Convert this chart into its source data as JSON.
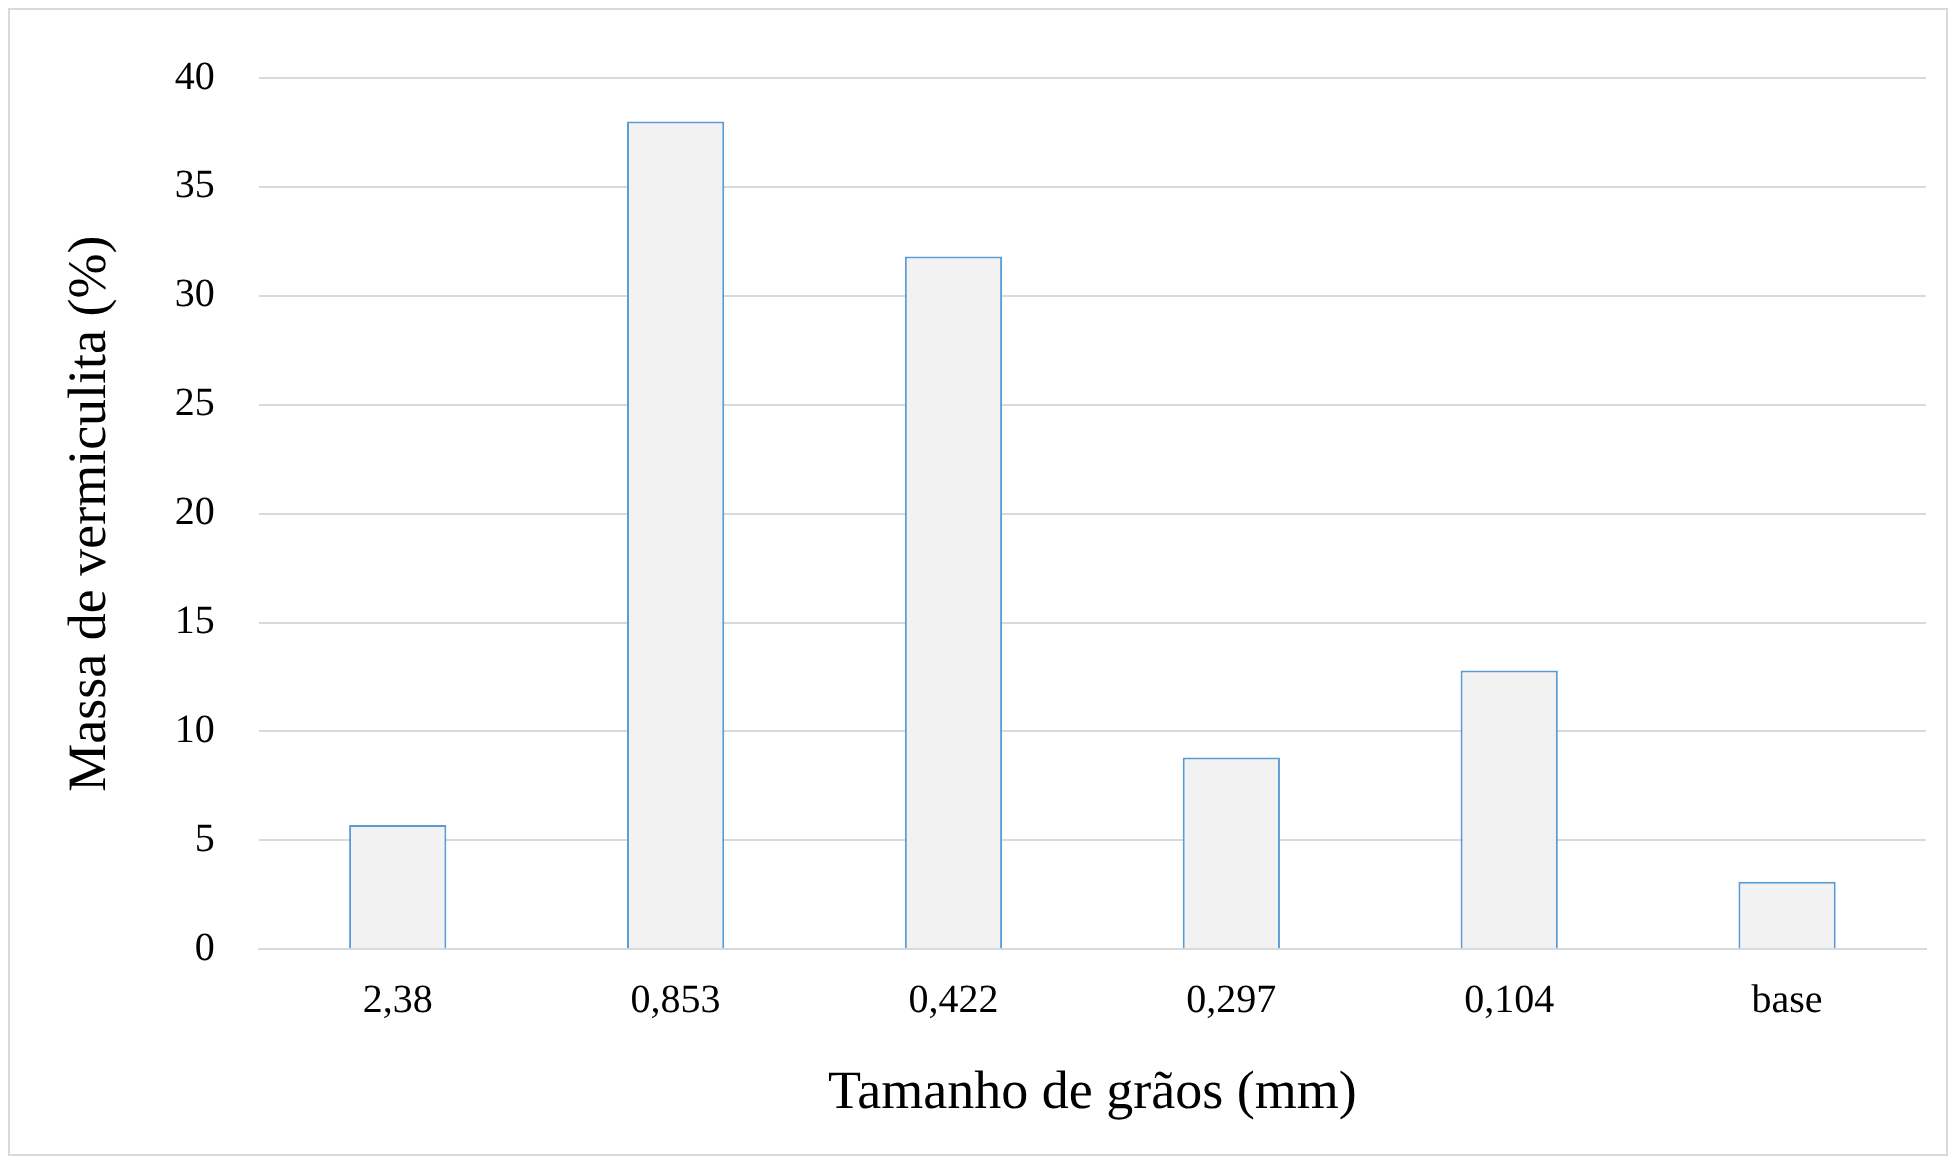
{
  "chart_data": {
    "type": "bar",
    "xlabel": "Tamanho de grãos (mm)",
    "ylabel": "Massa de vermiculita (%)",
    "categories": [
      "2,38",
      "0,853",
      "0,422",
      "0,297",
      "0,104",
      "base"
    ],
    "values": [
      5.7,
      38.0,
      31.8,
      8.8,
      12.8,
      3.1
    ],
    "color": "#f2f2f2",
    "ylim": [
      0,
      40
    ],
    "yticks": [
      0,
      5,
      10,
      15,
      20,
      25,
      30,
      35,
      40
    ],
    "grid": "y"
  }
}
